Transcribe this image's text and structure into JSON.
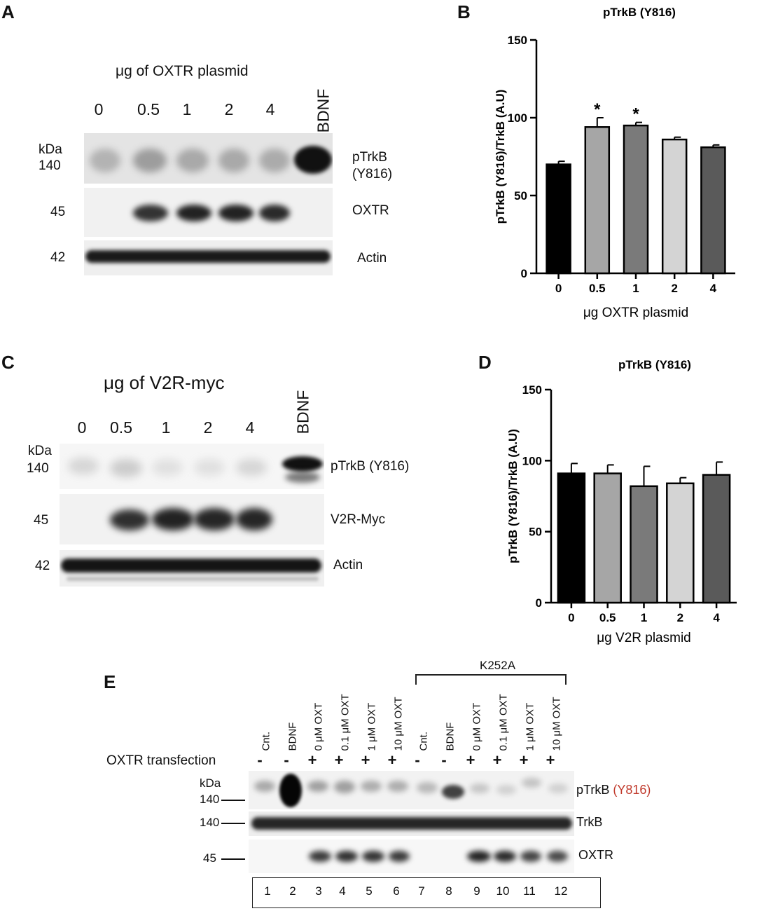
{
  "panels": {
    "A": {
      "letter": "A",
      "header": "μg of OXTR plasmid",
      "lanes": [
        "0",
        "0.5",
        "1",
        "2",
        "4",
        "BDNF"
      ],
      "kda_unit": "kDa",
      "rows": [
        {
          "kda": "140",
          "label_lines": [
            "pTrkB",
            "(Y816)"
          ]
        },
        {
          "kda": "45",
          "label_lines": [
            "OXTR"
          ]
        },
        {
          "kda": "42",
          "label_lines": [
            "Actin"
          ]
        }
      ]
    },
    "B": {
      "letter": "B",
      "chart_data": {
        "type": "bar",
        "title": "pTrkB (Y816)",
        "xlabel": "μg OXTR plasmid",
        "ylabel": "pTrkB (Y816)/TrkB  (A.U)",
        "categories": [
          "0",
          "0.5",
          "1",
          "2",
          "4"
        ],
        "values": [
          70,
          94,
          95,
          86,
          81
        ],
        "errors": [
          2,
          6,
          2,
          1.5,
          1.5
        ],
        "significance": [
          "",
          "*",
          "*",
          "",
          ""
        ],
        "colors": [
          "#000000",
          "#a6a6a6",
          "#7a7a7a",
          "#d4d4d4",
          "#5a5a5a"
        ],
        "ylim": [
          0,
          150
        ],
        "yticks": [
          0,
          50,
          100,
          150
        ]
      }
    },
    "C": {
      "letter": "C",
      "header": "μg of V2R-myc",
      "lanes": [
        "0",
        "0.5",
        "1",
        "2",
        "4",
        "BDNF"
      ],
      "kda_unit": "kDa",
      "rows": [
        {
          "kda": "140",
          "label_lines": [
            "pTrkB (Y816)"
          ]
        },
        {
          "kda": "45",
          "label_lines": [
            "V2R-Myc"
          ]
        },
        {
          "kda": "42",
          "label_lines": [
            "Actin"
          ]
        }
      ]
    },
    "D": {
      "letter": "D",
      "chart_data": {
        "type": "bar",
        "title": "pTrkB (Y816)",
        "xlabel": "μg V2R plasmid",
        "ylabel": "pTrkB (Y816)/TrkB  (A.U)",
        "categories": [
          "0",
          "0.5",
          "1",
          "2",
          "4"
        ],
        "values": [
          91,
          91,
          82,
          84,
          90
        ],
        "errors": [
          7,
          6,
          14,
          4,
          9
        ],
        "significance": [
          "",
          "",
          "",
          "",
          ""
        ],
        "colors": [
          "#000000",
          "#a6a6a6",
          "#7a7a7a",
          "#d4d4d4",
          "#5a5a5a"
        ],
        "ylim": [
          0,
          150
        ],
        "yticks": [
          0,
          50,
          100,
          150
        ]
      }
    },
    "E": {
      "letter": "E",
      "inhibitor": "K252A",
      "transfection_label": "OXTR transfection",
      "lanes": [
        {
          "name": "Cnt.",
          "sign": "-"
        },
        {
          "name": "BDNF",
          "sign": "-"
        },
        {
          "name": "0 μM OXT",
          "sign": "+"
        },
        {
          "name": "0.1 μM OXT",
          "sign": "+"
        },
        {
          "name": "1 μM OXT",
          "sign": "+"
        },
        {
          "name": "10 μM OXT",
          "sign": "+"
        },
        {
          "name": "Cnt.",
          "sign": "-"
        },
        {
          "name": "BDNF",
          "sign": "-"
        },
        {
          "name": "0 μM OXT",
          "sign": "+"
        },
        {
          "name": "0.1 μM OXT",
          "sign": "+"
        },
        {
          "name": "1 μM OXT",
          "sign": "+"
        },
        {
          "name": "10 μM OXT",
          "sign": "+"
        }
      ],
      "lane_numbers": [
        "1",
        "2",
        "3",
        "4",
        "5",
        "6",
        "7",
        "8",
        "9",
        "10",
        "11",
        "12"
      ],
      "kda_unit": "kDa",
      "rows": [
        {
          "kda": "140",
          "label": "pTrkB ",
          "label_colored": "(Y816)"
        },
        {
          "kda": "140",
          "label": "TrkB",
          "label_colored": ""
        },
        {
          "kda": "45",
          "label": "OXTR",
          "label_colored": ""
        }
      ],
      "accent_color": "#c0392b"
    }
  }
}
